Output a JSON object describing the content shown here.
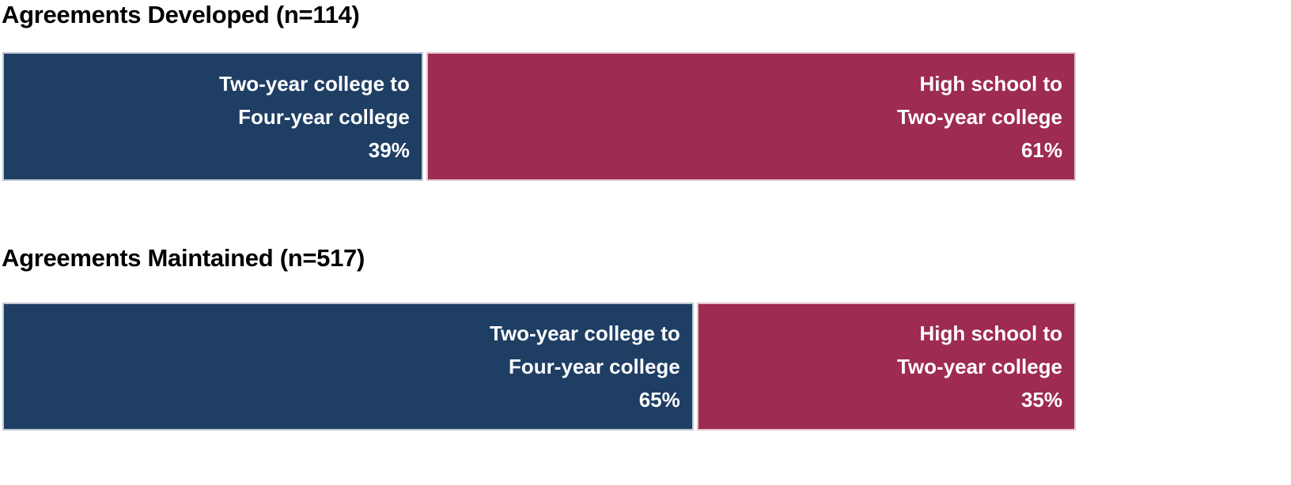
{
  "colors": {
    "two_year_to_four_year_fill": "#1F3E64",
    "high_school_to_two_year_fill": "#9E2B50",
    "segment_label_text": "#FFFFFF",
    "title_text": "#000000",
    "background": "#FFFFFF"
  },
  "chart_data": {
    "type": "bar",
    "subtype": "horizontal 100% stacked bar, one bar per chart, data labels inside segments, no axes, no gridlines, no legend",
    "unit": "%",
    "charts": [
      {
        "title": "Agreements Developed (n=114)",
        "n": 114,
        "segments": [
          {
            "name": "Two-year college to Four-year college",
            "value": 39,
            "color": "#1F3E64",
            "label_lines": [
              "Two-year college to",
              "Four-year college",
              "39%"
            ]
          },
          {
            "name": "High school to Two-year college",
            "value": 61,
            "color": "#9E2B50",
            "label_lines": [
              "High school to",
              "Two-year college",
              "61%"
            ]
          }
        ]
      },
      {
        "title": "Agreements Maintained (n=517)",
        "n": 517,
        "segments": [
          {
            "name": "Two-year college to Four-year college",
            "value": 65,
            "color": "#1F3E64",
            "label_lines": [
              "Two-year college to",
              "Four-year college",
              "65%"
            ]
          },
          {
            "name": "High school to Two-year college",
            "value": 35,
            "color": "#9E2B50",
            "label_lines": [
              "High school to",
              "Two-year college",
              "35%"
            ]
          }
        ]
      }
    ]
  }
}
